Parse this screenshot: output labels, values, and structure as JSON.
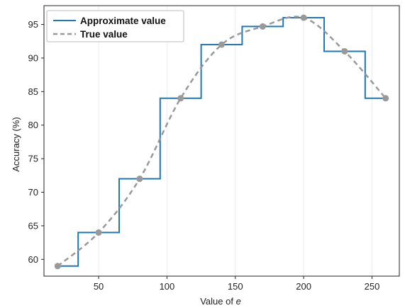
{
  "chart_data": {
    "type": "line",
    "xlabel": "Value of e",
    "xlabel_prefix": "Value of",
    "xlabel_var": "e",
    "ylabel": "Accuracy (%)",
    "xlim": [
      10,
      270
    ],
    "ylim": [
      57.5,
      97.8
    ],
    "xticks": [
      50,
      100,
      150,
      200,
      250
    ],
    "yticks": [
      60,
      65,
      70,
      75,
      80,
      85,
      90,
      95
    ],
    "grid": "vertical",
    "legend_position": "top-left",
    "series": [
      {
        "name": "Approximate value",
        "style": "step",
        "color": "#1f77b4",
        "x": [
          20,
          35,
          35,
          65,
          65,
          95,
          95,
          125,
          125,
          155,
          155,
          185,
          185,
          215,
          215,
          245,
          245,
          260
        ],
        "y": [
          59,
          59,
          64,
          64,
          72,
          72,
          84,
          84,
          92,
          92,
          94.7,
          94.7,
          96,
          96,
          91,
          91,
          84,
          84
        ]
      },
      {
        "name": "True value",
        "style": "dashed-smooth",
        "color": "#999999",
        "x": [
          20,
          50,
          80,
          110,
          140,
          170,
          200,
          230,
          260
        ],
        "y": [
          59,
          64,
          72,
          84,
          92,
          94.7,
          96,
          91,
          84
        ]
      }
    ]
  }
}
